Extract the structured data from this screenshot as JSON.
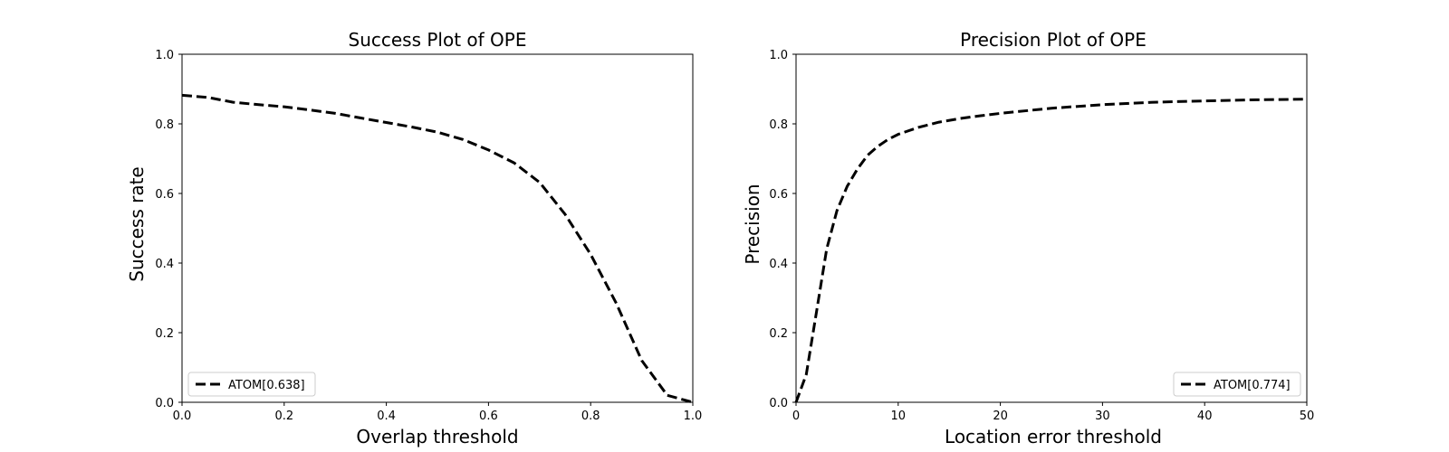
{
  "chart_data": [
    {
      "type": "line",
      "title": "Success Plot of OPE",
      "xlabel": "Overlap threshold",
      "ylabel": "Success rate",
      "xlim": [
        0,
        1
      ],
      "ylim": [
        0,
        1
      ],
      "xticks": [
        "0.0",
        "0.2",
        "0.4",
        "0.6",
        "0.8",
        "1.0"
      ],
      "yticks": [
        "0.0",
        "0.2",
        "0.4",
        "0.6",
        "0.8",
        "1.0"
      ],
      "grid": false,
      "legend_position": "bottom-left",
      "series": [
        {
          "name": "ATOM[0.638]",
          "color": "#000000",
          "linestyle": "dashed",
          "x": [
            0.0,
            0.05,
            0.1,
            0.15,
            0.2,
            0.25,
            0.3,
            0.35,
            0.4,
            0.45,
            0.5,
            0.55,
            0.6,
            0.65,
            0.7,
            0.75,
            0.8,
            0.85,
            0.9,
            0.95,
            1.0
          ],
          "y": [
            0.882,
            0.876,
            0.862,
            0.855,
            0.849,
            0.84,
            0.83,
            0.817,
            0.804,
            0.791,
            0.776,
            0.755,
            0.725,
            0.688,
            0.632,
            0.54,
            0.425,
            0.285,
            0.12,
            0.02,
            0.0
          ]
        }
      ]
    },
    {
      "type": "line",
      "title": "Precision Plot of OPE",
      "xlabel": "Location error threshold",
      "ylabel": "Precision",
      "xlim": [
        0,
        50
      ],
      "ylim": [
        0,
        1
      ],
      "xticks": [
        "0",
        "10",
        "20",
        "30",
        "40",
        "50"
      ],
      "yticks": [
        "0.0",
        "0.2",
        "0.4",
        "0.6",
        "0.8",
        "1.0"
      ],
      "grid": false,
      "legend_position": "bottom-right",
      "series": [
        {
          "name": "ATOM[0.774]",
          "color": "#000000",
          "linestyle": "dashed",
          "x": [
            0,
            1,
            2,
            3,
            4,
            5,
            6,
            7,
            8,
            9,
            10,
            12,
            14,
            16,
            18,
            20,
            25,
            30,
            35,
            40,
            45,
            50
          ],
          "y": [
            0.0,
            0.08,
            0.26,
            0.44,
            0.55,
            0.62,
            0.67,
            0.71,
            0.735,
            0.755,
            0.77,
            0.79,
            0.805,
            0.815,
            0.823,
            0.83,
            0.845,
            0.855,
            0.862,
            0.866,
            0.869,
            0.871
          ]
        }
      ]
    }
  ]
}
